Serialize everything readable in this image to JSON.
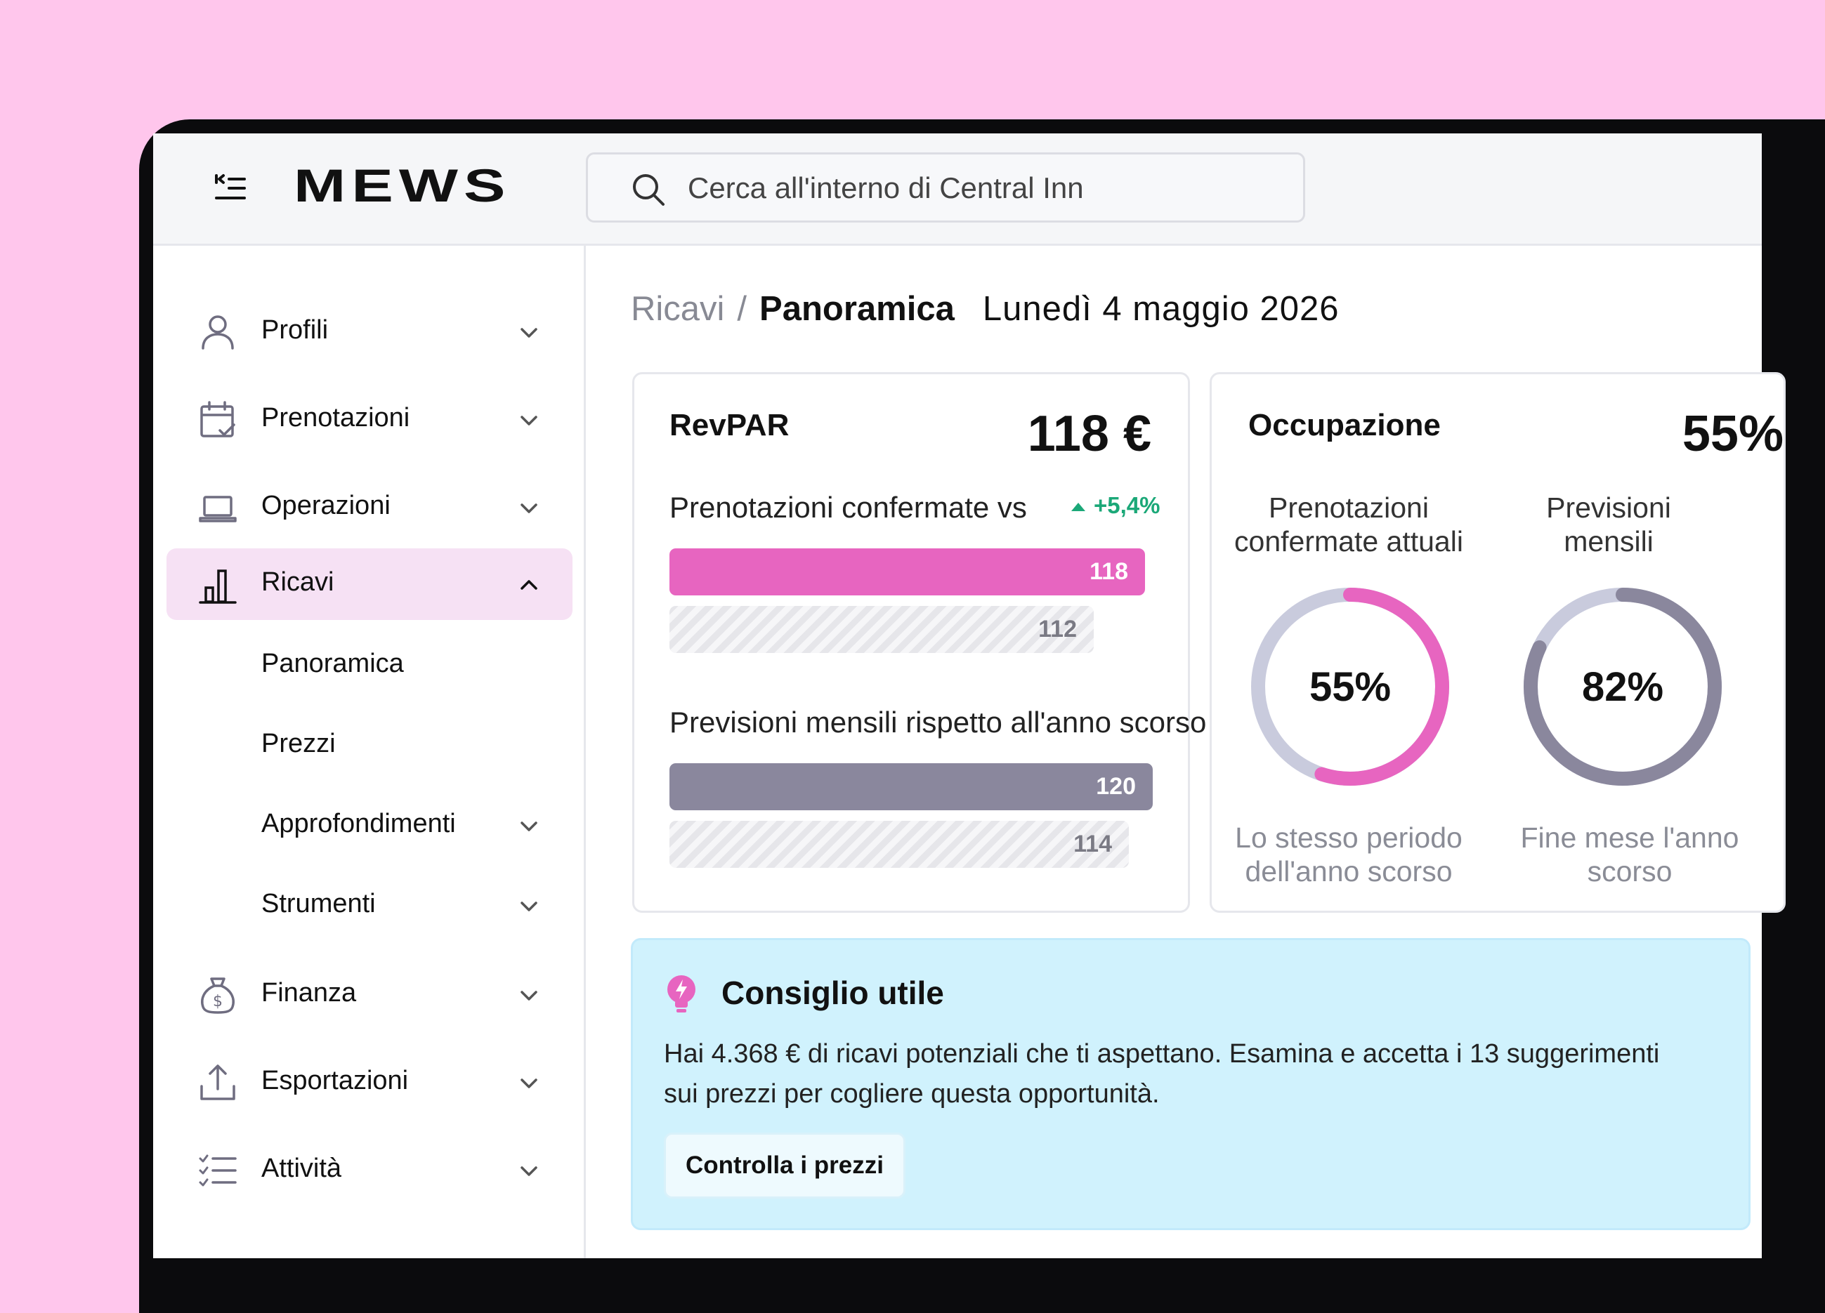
{
  "app": {
    "brand": "MEWS",
    "search_placeholder": "Cerca all'interno di Central Inn"
  },
  "sidebar": {
    "items": [
      {
        "label": "Profili",
        "icon": "user-icon"
      },
      {
        "label": "Prenotazioni",
        "icon": "calendar-check-icon"
      },
      {
        "label": "Operazioni",
        "icon": "laptop-icon"
      },
      {
        "label": "Ricavi",
        "icon": "bar-chart-icon",
        "active": true,
        "expanded": true
      },
      {
        "label": "Finanza",
        "icon": "money-bag-icon"
      },
      {
        "label": "Esportazioni",
        "icon": "upload-icon"
      },
      {
        "label": "Attività",
        "icon": "checklist-icon"
      }
    ],
    "subitems": [
      {
        "label": "Panoramica"
      },
      {
        "label": "Prezzi"
      },
      {
        "label": "Approfondimenti",
        "has_chevron": true
      },
      {
        "label": "Strumenti",
        "has_chevron": true
      }
    ]
  },
  "breadcrumb": {
    "section": "Ricavi",
    "separator": "/",
    "page": "Panoramica",
    "date": "Lunedì 4 maggio 2026"
  },
  "revpar": {
    "title": "RevPAR",
    "value": "118 €",
    "row1_label": "Prenotazioni confermate vs",
    "row1_delta": "+5,4%",
    "bar1_current": 118,
    "bar1_previous": 112,
    "row2_label": "Previsioni mensili rispetto all'anno scorso",
    "bar2_current": 120,
    "bar2_previous": 114,
    "bar1_current_label": "118",
    "bar1_previous_label": "112",
    "bar2_current_label": "120",
    "bar2_previous_label": "114"
  },
  "occupancy": {
    "title": "Occupazione",
    "value": "55%",
    "col1_head": "Prenotazioni confermate attuali",
    "col1_pct": 55,
    "col1_pct_label": "55%",
    "col1_foot": "Lo stesso periodo dell'anno scorso",
    "col2_head": "Previsioni mensili",
    "col2_pct": 82,
    "col2_pct_label": "82%",
    "col2_foot": "Fine mese l'anno scorso"
  },
  "tip": {
    "title": "Consiglio utile",
    "body": "Hai 4.368 € di ricavi potenziali che ti aspettano. Esamina e accetta i 13 suggerimenti sui prezzi per cogliere questa opportunità.",
    "button": "Controlla i prezzi"
  },
  "colors": {
    "background": "#ffc6ec",
    "accent_pink": "#e765c0",
    "accent_grey": "#8a879d",
    "positive": "#1ba878",
    "tip_bg": "#d0f2fd",
    "active_nav_bg": "#f6e1f4"
  }
}
